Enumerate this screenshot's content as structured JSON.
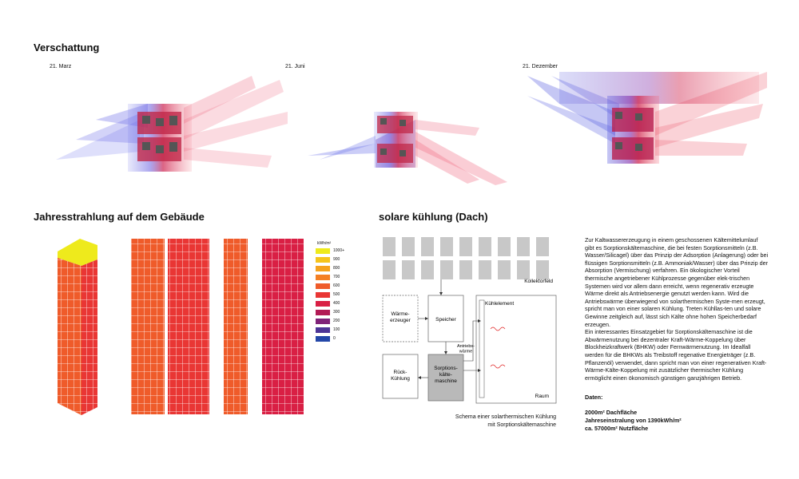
{
  "sections": {
    "shading_title": "Verschattung",
    "radiation_title": "Jahresstrahlung auf dem Gebäude",
    "cooling_title": "solare kühlung (Dach)"
  },
  "shading_dates": [
    "21. Marz",
    "21. Juni",
    "21. Dezember"
  ],
  "legend": {
    "unit": "kWh/m²",
    "items": [
      {
        "label": "1000+",
        "color": "#eeea1c"
      },
      {
        "label": "900",
        "color": "#f5c41c"
      },
      {
        "label": "800",
        "color": "#f5a21e"
      },
      {
        "label": "700",
        "color": "#f47f24"
      },
      {
        "label": "600",
        "color": "#ef5b2a"
      },
      {
        "label": "500",
        "color": "#e93634"
      },
      {
        "label": "400",
        "color": "#d91f44"
      },
      {
        "label": "300",
        "color": "#b21a55"
      },
      {
        "label": "200",
        "color": "#7f2278"
      },
      {
        "label": "100",
        "color": "#4d3596"
      },
      {
        "label": "0",
        "color": "#2447a8"
      }
    ]
  },
  "diagram": {
    "collector": "Kollektorfeld",
    "heat_generator": "Wärme-\nerzeuger",
    "storage": "Speicher",
    "cooling_element": "Kühlelement",
    "drive_heat": "Antriebs-\nwärme",
    "back_cooling": "Rück-\nKühlung",
    "sorption_machine": "Sorptions-\nkälte-\nmaschine",
    "room": "Raum",
    "caption": "Schema einer solarthermischen Kühlung\nmit Sorptionskältemaschine"
  },
  "description": "Zur Kaltwassererzeugung in einem geschossenen Kältemittelumlauf gibt es Sorptionskältemaschine, die bei festen Sorptionsmitteln (z.B. Wasser/Silicagel) über das Prinzip der Adsorption (Anlagerung) oder bei flüssigen Sorptionsmitteln (z.B. Ammoniak/Wasser) über das Prinzip der Absorption (Vermischung) verfahren. Ein ökologischer Vorteil thermische angetriebener Kühlprozesse gegenüber elek-trischen Systemen wird vor allem dann erreicht, wenn regenerativ erzeugte Wärme direkt als Antriebsenergie genutzt werden kann. Wird die Antriebswärme überwiegend von solarthermischen Syste-men erzeugt, spricht man von einer solaren Kühlung. Treten Kühllas-ten und solare Gewinne zeitgleich auf, lässt sich Kälte ohne hohen Speicherbedarf erzeugen.\nEin interessantes Einsatzgebiet für Sorptionskältemaschine ist die Abwärmenutzung bei dezentraler Kraft-Wärme-Koppelung über Blockheizkraftwerk (BHKW) oder Fernwärmenutzung. Im Idealfall werden für die BHKWs als Treibstoff regenative Energieträger (z.B. Pflanzenöl) verwendet, dann spricht man von einer regenerativen Kraft-Wärme-Kälte-Koppelung mit zusätzlicher thermischer Kühlung ermöglicht einen ökonomisch günstigen ganzjährigen Betrieb.",
  "data_section": {
    "title": "Daten:",
    "lines": [
      "2000m² Dachfläche",
      "Jahreseinstralung von 1390kWh/m²",
      "ca. 57000m² Nutzfläche"
    ]
  }
}
